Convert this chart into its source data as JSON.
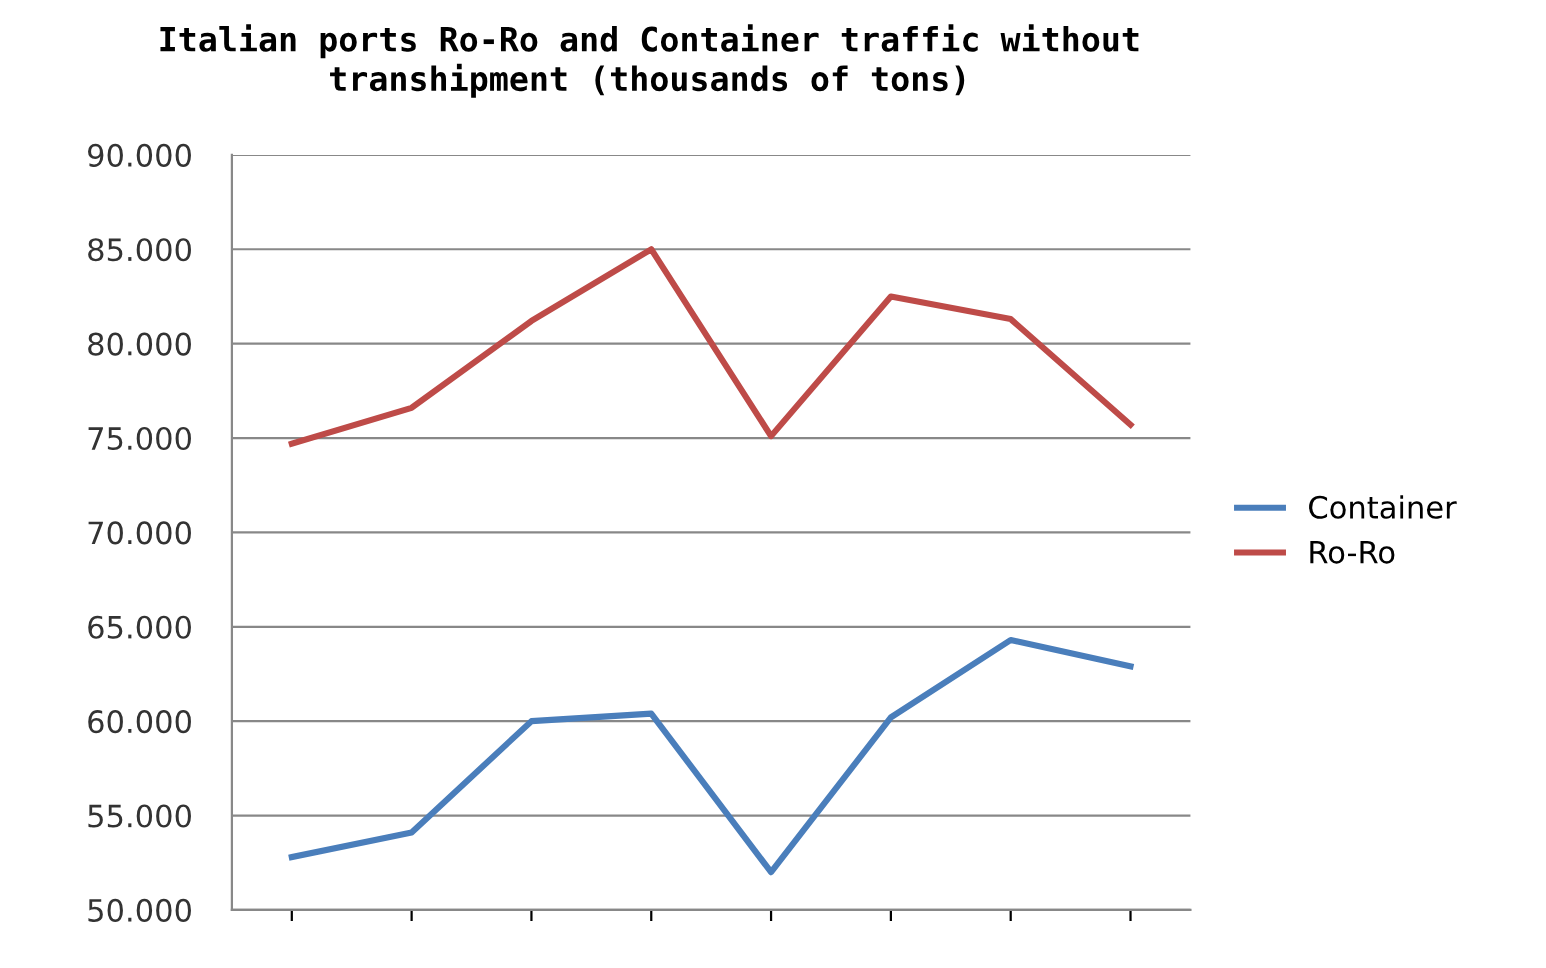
{
  "chart_data": {
    "type": "line",
    "title": "Italian ports Ro-Ro and Container traffic without\ntranshipment (thousands of tons)",
    "categories": [
      null,
      null,
      null,
      null,
      null,
      null,
      null,
      null
    ],
    "series": [
      {
        "name": "Container",
        "color": "#4a7ebb",
        "values": [
          52800,
          54100,
          60000,
          60400,
          52000,
          60200,
          64300,
          62900
        ]
      },
      {
        "name": "Ro-Ro",
        "color": "#be4b48",
        "values": [
          74700,
          76600,
          81200,
          85000,
          75100,
          82500,
          81300,
          75700
        ]
      }
    ],
    "ylim": [
      50000,
      90000
    ],
    "yticks": [
      {
        "value": 50000,
        "label": "50.000"
      },
      {
        "value": 55000,
        "label": "55.000"
      },
      {
        "value": 60000,
        "label": "60.000"
      },
      {
        "value": 65000,
        "label": "65.000"
      },
      {
        "value": 70000,
        "label": "70.000"
      },
      {
        "value": 75000,
        "label": "75.000"
      },
      {
        "value": 80000,
        "label": "80.000"
      },
      {
        "value": 85000,
        "label": "85.000"
      },
      {
        "value": 90000,
        "label": "90.000"
      }
    ],
    "grid": "y",
    "legend": "right",
    "tick_labels": "y",
    "marker": "none",
    "line_style": "solid"
  }
}
